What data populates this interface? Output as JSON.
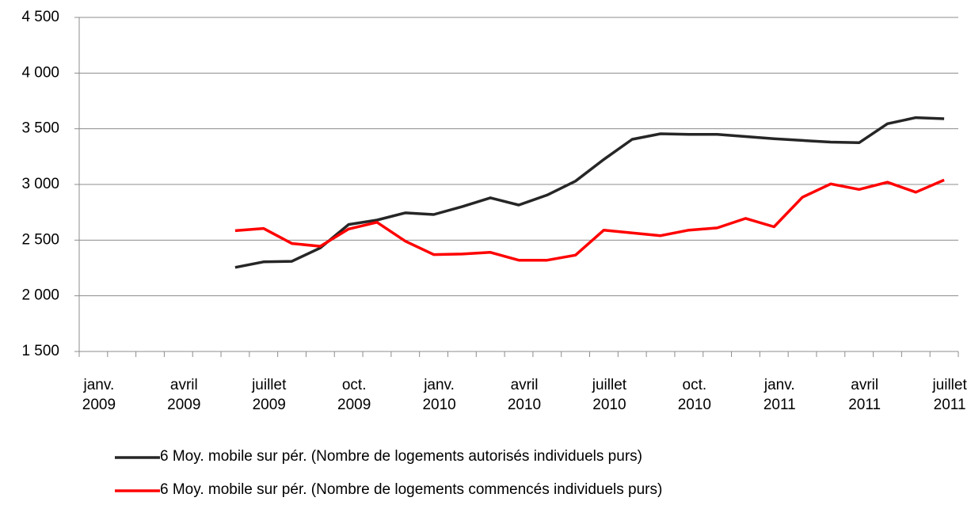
{
  "chart_data": {
    "type": "line",
    "categories": [
      "janv. 2009",
      null,
      null,
      "avril 2009",
      null,
      null,
      "juillet 2009",
      null,
      null,
      "oct. 2009",
      null,
      null,
      "janv. 2010",
      null,
      null,
      "avril 2010",
      null,
      null,
      "juillet 2010",
      null,
      null,
      "oct. 2010",
      null,
      null,
      "janv. 2011",
      null,
      null,
      "avril 2011",
      null,
      null,
      "juillet 2011"
    ],
    "series": [
      {
        "name": "6 Moy. mobile sur pér. (Nombre de logements autorisés individuels purs)",
        "color": "#262626",
        "values": [
          null,
          null,
          null,
          null,
          null,
          2255,
          2305,
          2310,
          2430,
          2640,
          2680,
          2745,
          2730,
          2800,
          2880,
          2815,
          2905,
          3030,
          3225,
          3405,
          3455,
          3450,
          3450,
          3430,
          3410,
          3395,
          3380,
          3375,
          3545,
          3600,
          3590
        ]
      },
      {
        "name": "6 Moy. mobile sur pér. (Nombre de logements commencés individuels purs)",
        "color": "#ff0000",
        "values": [
          null,
          null,
          null,
          null,
          null,
          2585,
          2605,
          2470,
          2445,
          2600,
          2660,
          2490,
          2370,
          2375,
          2390,
          2320,
          2320,
          2365,
          2590,
          2565,
          2540,
          2590,
          2610,
          2695,
          2620,
          2885,
          3005,
          2955,
          3020,
          2930,
          3040
        ]
      }
    ],
    "ylim": [
      1500,
      4500
    ],
    "yticks": [
      {
        "value": 1500,
        "label": "1 500"
      },
      {
        "value": 2000,
        "label": "2 000"
      },
      {
        "value": 2500,
        "label": "2 500"
      },
      {
        "value": 3000,
        "label": "3 000"
      },
      {
        "value": 3500,
        "label": "3 500"
      },
      {
        "value": 4000,
        "label": "4 000"
      },
      {
        "value": 4500,
        "label": "4 500"
      }
    ],
    "grid": true,
    "legend": "bottom"
  }
}
